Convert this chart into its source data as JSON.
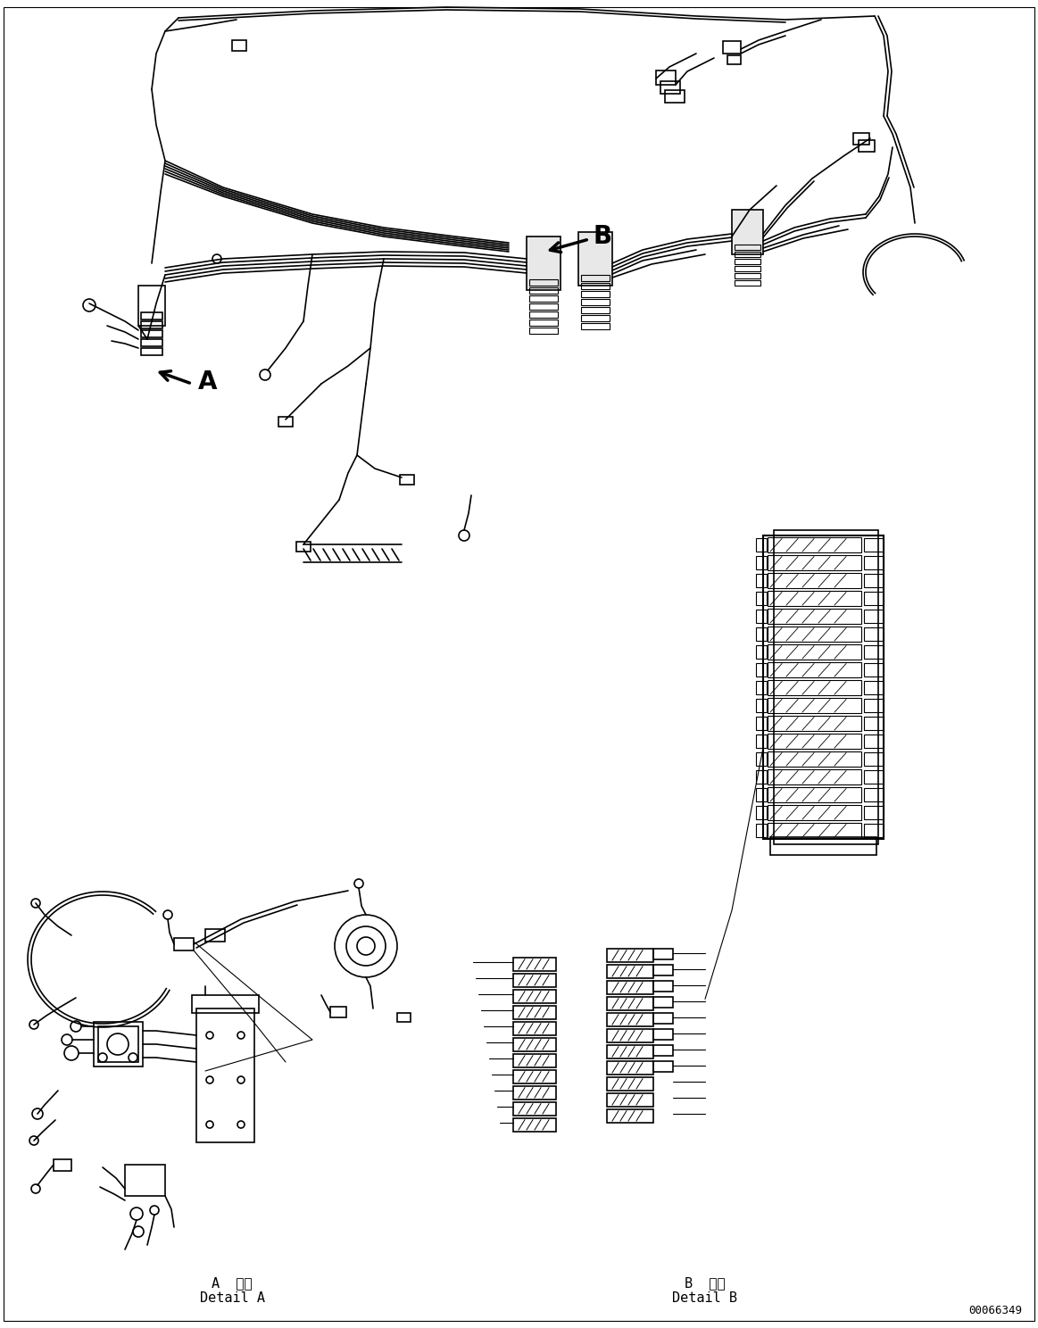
{
  "background_color": "#ffffff",
  "line_color": "#000000",
  "figure_width": 11.63,
  "figure_height": 14.88,
  "dpi": 100,
  "part_number": "00066349",
  "label_A": "A  詳細\nDetail A",
  "label_B": "B  詳細\nDetail B",
  "arrow_A_label": "A",
  "arrow_B_label": "B"
}
